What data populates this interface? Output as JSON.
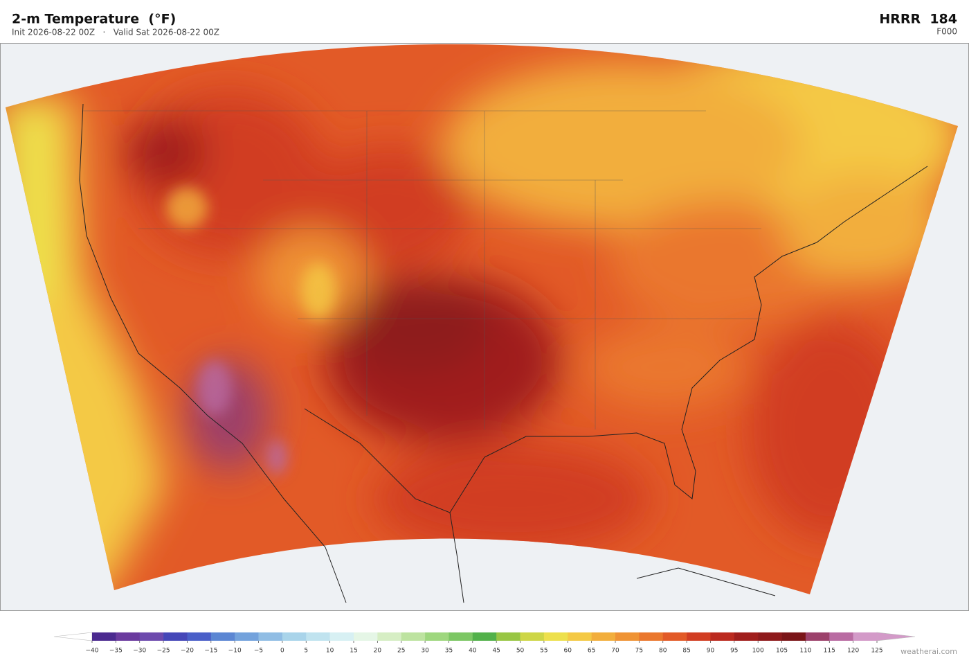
{
  "header": {
    "title": "2-m Temperature  (°F)",
    "subtitle": "Init 2026-08-22 00Z   ·   Valid Sat 2026-08-22 00Z",
    "model": "HRRR  184",
    "forecast": "F000"
  },
  "colorbar": {
    "ticks": [
      {
        "value": -40,
        "label": "−40"
      },
      {
        "value": -35,
        "label": "−35"
      },
      {
        "value": -30,
        "label": "−30"
      },
      {
        "value": -25,
        "label": "−25"
      },
      {
        "value": -20,
        "label": "−20"
      },
      {
        "value": -15,
        "label": "−15"
      },
      {
        "value": -10,
        "label": "−10"
      },
      {
        "value": -5,
        "label": "−5"
      },
      0,
      5,
      10,
      15,
      20,
      25,
      30,
      35,
      40,
      45,
      50,
      55,
      60,
      65,
      70,
      75,
      80,
      85,
      90,
      95,
      100,
      105,
      110,
      115,
      120,
      125
    ],
    "colors": [
      "#4b2a8f",
      "#6a3a9e",
      "#6d4aad",
      "#4547b8",
      "#4a5fc8",
      "#5b86d3",
      "#73a2dc",
      "#90bde4",
      "#a9d4ea",
      "#c0e3ef",
      "#d7f0f3",
      "#e5f6e6",
      "#d6eec4",
      "#bde3a0",
      "#9ed77e",
      "#7cc764",
      "#52b14a",
      "#98c644",
      "#cdd646",
      "#ede04c",
      "#f4c945",
      "#f2ae3c",
      "#ef9334",
      "#ea772d",
      "#e25a27",
      "#d13d22",
      "#bb2a1f",
      "#a01e1c",
      "#8e1a1b",
      "#7a1518",
      "#9c416b",
      "#b96ba2",
      "#d39ac8"
    ]
  },
  "footer": {
    "credit": "weatherai.com"
  }
}
